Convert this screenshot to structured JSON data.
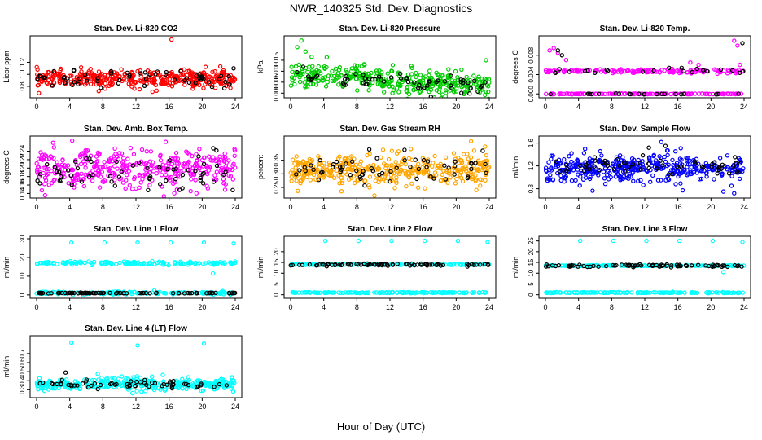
{
  "page": {
    "title": "NWR_140325  Std. Dev. Diagnostics",
    "xlabel": "Hour of Day (UTC)"
  },
  "chart_data": [
    {
      "type": "scatter",
      "title": "Stan. Dev. Li-820 CO2",
      "ylabel": "Licor ppm",
      "xlim": [
        0,
        24
      ],
      "ylim": [
        0.65,
        1.6
      ],
      "xticks": [
        "0",
        "4",
        "8",
        "12",
        "16",
        "20",
        "24"
      ],
      "yticks": [
        {
          "v": 0.8,
          "label": "0.8"
        },
        {
          "v": 1.0,
          "label": "1.0"
        },
        {
          "v": 1.2,
          "label": "1.2"
        }
      ],
      "series": [
        {
          "color": "#ff0000",
          "mean": 0.93,
          "spread": 0.07,
          "n": 380,
          "outliers": [
            [
              16.3,
              1.58
            ],
            [
              7.5,
              0.72
            ],
            [
              14.0,
              0.71
            ]
          ]
        },
        {
          "color": "#000000",
          "mean": 0.92,
          "spread": 0.06,
          "n": 60,
          "outliers": [
            [
              4.5,
              1.07
            ],
            [
              9.0,
              1.05
            ],
            [
              23.8,
              1.1
            ]
          ]
        }
      ]
    },
    {
      "type": "scatter",
      "title": "Stan. Dev. Li-820 Pressure",
      "ylabel": "kPa",
      "xlim": [
        0,
        24
      ],
      "ylim": [
        -0.001,
        0.025
      ],
      "xticks": [
        "0",
        "4",
        "8",
        "12",
        "16",
        "20",
        "24"
      ],
      "yticks": [
        {
          "v": 0.0,
          "label": "0.000"
        },
        {
          "v": 0.005,
          "label": "0.005"
        },
        {
          "v": 0.01,
          "label": "0.010"
        },
        {
          "v": 0.015,
          "label": "0.015"
        }
      ],
      "series": [
        {
          "color": "#00cc00",
          "mean": 0.0085,
          "spread": 0.0028,
          "n": 380,
          "trend": -0.00022,
          "outliers": [
            [
              1.3,
              0.024
            ],
            [
              0.8,
              0.021
            ],
            [
              1.8,
              0.019
            ],
            [
              23.6,
              0.015
            ],
            [
              12.3,
              0.0
            ],
            [
              21.0,
              0.0
            ]
          ]
        },
        {
          "color": "#000000",
          "mean": 0.008,
          "spread": 0.0022,
          "n": 60,
          "trend": -0.0002,
          "outliers": [
            [
              1.5,
              0.012
            ]
          ]
        }
      ]
    },
    {
      "type": "scatter",
      "title": "Stan. Dev. Li-820 Temp.",
      "ylabel": "degrees C",
      "xlim": [
        0,
        24
      ],
      "ylim": [
        -0.0003,
        0.0115
      ],
      "xticks": [
        "0",
        "4",
        "8",
        "12",
        "16",
        "20",
        "24"
      ],
      "yticks": [
        {
          "v": 0.0,
          "label": "0.000"
        },
        {
          "v": 0.004,
          "label": "0.004"
        },
        {
          "v": 0.008,
          "label": "0.008"
        }
      ],
      "series": [
        {
          "color": "#ff00ff",
          "mean": 0.0047,
          "spread": 0.0002,
          "n": 300,
          "bands": [
            0.0047,
            0.0
          ],
          "outliers": [
            [
              0.5,
              0.009
            ],
            [
              1.0,
              0.0095
            ],
            [
              1.5,
              0.0085
            ],
            [
              2.5,
              0.007
            ],
            [
              17.5,
              0.0065
            ],
            [
              18.5,
              0.006
            ],
            [
              22.8,
              0.011
            ],
            [
              23.2,
              0.01
            ],
            [
              23.5,
              0.006
            ]
          ]
        },
        {
          "color": "#000000",
          "mean": 0.0047,
          "spread": 0.0003,
          "n": 45,
          "bands": [
            0.0047,
            0.0
          ],
          "outliers": [
            [
              1.5,
              0.009
            ],
            [
              2.0,
              0.008
            ],
            [
              23.8,
              0.0105
            ]
          ]
        }
      ]
    },
    {
      "type": "scatter",
      "title": "Stan. Dev. Amb. Box Temp.",
      "ylabel": "degrees C",
      "xlim": [
        0,
        24
      ],
      "ylim": [
        0.135,
        0.27
      ],
      "xticks": [
        "0",
        "4",
        "8",
        "12",
        "16",
        "20",
        "24"
      ],
      "yticks": [
        {
          "v": 0.14,
          "label": "0.14"
        },
        {
          "v": 0.16,
          "label": "0.16"
        },
        {
          "v": 0.18,
          "label": "0.18"
        },
        {
          "v": 0.2,
          "label": "0.20"
        },
        {
          "v": 0.22,
          "label": "0.22"
        },
        {
          "v": 0.24,
          "label": "0.24"
        }
      ],
      "series": [
        {
          "color": "#ff00ff",
          "mean": 0.198,
          "spread": 0.022,
          "n": 380,
          "outliers": [
            [
              4.3,
              0.265
            ],
            [
              2.0,
              0.26
            ],
            [
              15.6,
              0.262
            ]
          ]
        },
        {
          "color": "#000000",
          "mean": 0.195,
          "spread": 0.02,
          "n": 60,
          "outliers": [
            [
              23.7,
              0.148
            ]
          ]
        }
      ]
    },
    {
      "type": "scatter",
      "title": "Stan. Dev. Gas Stream RH",
      "ylabel": "percent",
      "xlim": [
        0,
        24
      ],
      "ylim": [
        0.22,
        0.43
      ],
      "xticks": [
        "0",
        "4",
        "8",
        "12",
        "16",
        "20",
        "24"
      ],
      "yticks": [
        {
          "v": 0.25,
          "label": "0.25"
        },
        {
          "v": 0.3,
          "label": "0.30"
        },
        {
          "v": 0.35,
          "label": "0.35"
        }
      ],
      "series": [
        {
          "color": "#ffa500",
          "mean": 0.31,
          "spread": 0.03,
          "n": 400,
          "outliers": [
            [
              21.8,
              0.42
            ],
            [
              23.5,
              0.4
            ]
          ]
        },
        {
          "color": "#000000",
          "mean": 0.31,
          "spread": 0.025,
          "n": 60,
          "outliers": [
            [
              9.5,
              0.39
            ],
            [
              23.2,
              0.385
            ]
          ]
        }
      ]
    },
    {
      "type": "scatter",
      "title": "Stan. Dev. Sample Flow",
      "ylabel": "ml/min",
      "xlim": [
        0,
        24
      ],
      "ylim": [
        0.68,
        1.68
      ],
      "xticks": [
        "0",
        "4",
        "8",
        "12",
        "16",
        "20",
        "24"
      ],
      "yticks": [
        {
          "v": 0.8,
          "label": "0.8"
        },
        {
          "v": 1.2,
          "label": "1.2"
        },
        {
          "v": 1.6,
          "label": "1.6"
        }
      ],
      "series": [
        {
          "color": "#0000ff",
          "mean": 1.17,
          "spread": 0.12,
          "n": 400,
          "outliers": [
            [
              14.0,
              1.62
            ],
            [
              22.8,
              0.72
            ],
            [
              21.5,
              0.75
            ]
          ]
        },
        {
          "color": "#000000",
          "mean": 1.2,
          "spread": 0.1,
          "n": 60,
          "outliers": [
            [
              14.5,
              1.55
            ],
            [
              12.5,
              1.52
            ]
          ]
        }
      ]
    },
    {
      "type": "scatter",
      "title": "Stan. Dev. Line 1 Flow",
      "ylabel": "ml/min",
      "xlim": [
        0,
        24
      ],
      "ylim": [
        -0.5,
        30
      ],
      "xticks": [
        "0",
        "4",
        "8",
        "12",
        "16",
        "20",
        "24"
      ],
      "yticks": [
        {
          "v": 0,
          "label": "0"
        },
        {
          "v": 10,
          "label": "10"
        },
        {
          "v": 20,
          "label": "20"
        },
        {
          "v": 30,
          "label": "30"
        }
      ],
      "series": [
        {
          "color": "#00ffff",
          "mean": 17.0,
          "spread": 0.4,
          "n": 300,
          "bands": [
            17.0,
            1.0
          ],
          "outliers": [
            [
              4.2,
              28
            ],
            [
              8.2,
              28
            ],
            [
              12.2,
              28
            ],
            [
              16.2,
              28
            ],
            [
              20.2,
              28
            ],
            [
              23.8,
              27.5
            ],
            [
              21.3,
              11.5
            ]
          ]
        },
        {
          "color": "#000000",
          "mean": 1.0,
          "spread": 0.1,
          "n": 80,
          "outliers": []
        }
      ]
    },
    {
      "type": "scatter",
      "title": "Stan. Dev. Line 2 Flow",
      "ylabel": "ml/min",
      "xlim": [
        0,
        24
      ],
      "ylim": [
        -0.5,
        26
      ],
      "xticks": [
        "0",
        "4",
        "8",
        "12",
        "16",
        "20",
        "24"
      ],
      "yticks": [
        {
          "v": 0,
          "label": "0"
        },
        {
          "v": 5,
          "label": "5"
        },
        {
          "v": 10,
          "label": "10"
        },
        {
          "v": 15,
          "label": "15"
        },
        {
          "v": 20,
          "label": "20"
        }
      ],
      "series": [
        {
          "color": "#00ffff",
          "mean": 1.0,
          "spread": 0.1,
          "n": 300,
          "bands": [
            1.0,
            14.0
          ],
          "outliers": [
            [
              4.2,
              25
            ],
            [
              8.2,
              25
            ],
            [
              12.2,
              25
            ],
            [
              16.2,
              25
            ],
            [
              20.2,
              25
            ],
            [
              23.8,
              24.5
            ]
          ]
        },
        {
          "color": "#000000",
          "mean": 14.0,
          "spread": 0.3,
          "n": 80,
          "outliers": []
        }
      ]
    },
    {
      "type": "scatter",
      "title": "Stan. Dev. Line 3 Flow",
      "ylabel": "ml/min",
      "xlim": [
        0,
        24
      ],
      "ylim": [
        -0.5,
        26
      ],
      "xticks": [
        "0",
        "4",
        "8",
        "12",
        "16",
        "20",
        "24"
      ],
      "yticks": [
        {
          "v": 0,
          "label": "0"
        },
        {
          "v": 5,
          "label": "5"
        },
        {
          "v": 10,
          "label": "10"
        },
        {
          "v": 15,
          "label": "15"
        },
        {
          "v": 20,
          "label": "20"
        },
        {
          "v": 25,
          "label": "25"
        }
      ],
      "series": [
        {
          "color": "#00ffff",
          "mean": 1.0,
          "spread": 0.1,
          "n": 300,
          "bands": [
            1.0,
            13.5
          ],
          "outliers": [
            [
              4.2,
              25
            ],
            [
              8.2,
              25
            ],
            [
              12.2,
              25
            ],
            [
              16.2,
              25
            ],
            [
              20.2,
              25
            ],
            [
              23.8,
              24.5
            ],
            [
              21.5,
              10.5
            ]
          ]
        },
        {
          "color": "#000000",
          "mean": 13.5,
          "spread": 0.3,
          "n": 80,
          "outliers": []
        }
      ]
    },
    {
      "type": "scatter",
      "title": "Stan. Dev. Line 4 (LT) Flow",
      "ylabel": "ml/min",
      "xlim": [
        0,
        24
      ],
      "ylim": [
        0.24,
        0.87
      ],
      "xticks": [
        "0",
        "4",
        "8",
        "12",
        "16",
        "20",
        "24"
      ],
      "yticks": [
        {
          "v": 0.3,
          "label": "0.3"
        },
        {
          "v": 0.4,
          "label": "0.4"
        },
        {
          "v": 0.5,
          "label": "0.5"
        },
        {
          "v": 0.6,
          "label": "0.6"
        },
        {
          "v": 0.7,
          "label": "0.7"
        }
      ],
      "series": [
        {
          "color": "#00ffff",
          "mean": 0.36,
          "spread": 0.035,
          "n": 380,
          "outliers": [
            [
              4.2,
              0.82
            ],
            [
              12.2,
              0.79
            ],
            [
              20.2,
              0.81
            ]
          ]
        },
        {
          "color": "#000000",
          "mean": 0.36,
          "spread": 0.025,
          "n": 60,
          "outliers": [
            [
              3.5,
              0.49
            ]
          ]
        }
      ]
    }
  ]
}
